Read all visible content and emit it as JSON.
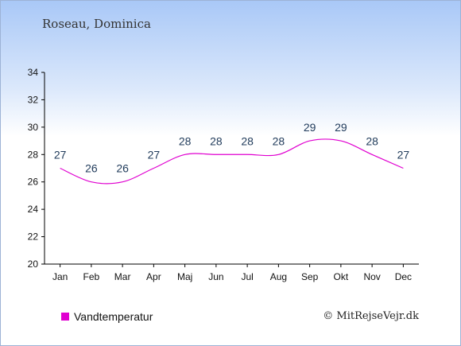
{
  "header": {
    "title": "Roseau, Dominica"
  },
  "legend": {
    "label": "Vandtemperatur",
    "color": "#e000d0"
  },
  "credit": {
    "text": "© MitRejseVejr.dk"
  },
  "chart_data": {
    "type": "line",
    "categories": [
      "Jan",
      "Feb",
      "Mar",
      "Apr",
      "Maj",
      "Jun",
      "Jul",
      "Aug",
      "Sep",
      "Okt",
      "Nov",
      "Dec"
    ],
    "series": [
      {
        "name": "Vandtemperatur",
        "values": [
          27,
          26,
          26,
          27,
          28,
          28,
          28,
          28,
          29,
          29,
          28,
          27
        ],
        "color": "#e000d0"
      }
    ],
    "ylim": [
      20,
      34
    ],
    "yticks": [
      20,
      22,
      24,
      26,
      28,
      30,
      32,
      34
    ],
    "grid": false,
    "legend_position": "bottom-left"
  }
}
